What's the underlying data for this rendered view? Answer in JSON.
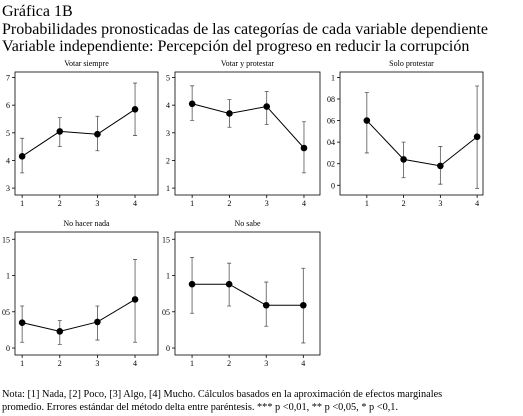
{
  "header": {
    "lines": [
      "Gráfica 1B",
      "Probabilidades pronosticadas de las categorías de cada variable dependiente",
      "Variable independiente: Percepción del progreso en reducir la corrupción"
    ]
  },
  "chart_data": [
    {
      "type": "line",
      "title": "Votar siempre",
      "color": "#000000",
      "x": [
        1,
        2,
        3,
        4
      ],
      "xlim": [
        0.81,
        4.61
      ],
      "xticks": [
        1,
        2,
        3,
        4
      ],
      "values": [
        4.15,
        5.05,
        4.95,
        5.85
      ],
      "ci_low": [
        3.55,
        4.5,
        4.35,
        4.9
      ],
      "ci_high": [
        4.8,
        5.55,
        5.6,
        6.8
      ],
      "ylim": [
        2.75,
        7.2
      ],
      "yticks": [
        3,
        4,
        5,
        6,
        7
      ]
    },
    {
      "type": "line",
      "title": "Votar y protestar",
      "color": "#000000",
      "x": [
        1,
        2,
        3,
        4
      ],
      "xlim": [
        0.54,
        4.43
      ],
      "xticks": [
        1,
        2,
        3,
        4
      ],
      "values": [
        4.05,
        3.7,
        3.95,
        2.45
      ],
      "ci_low": [
        3.45,
        3.2,
        3.3,
        1.55
      ],
      "ci_high": [
        4.7,
        4.2,
        4.5,
        3.4
      ],
      "ylim": [
        0.75,
        5.2
      ],
      "yticks": [
        1,
        2,
        3,
        4,
        5
      ]
    },
    {
      "type": "line",
      "title": "Solo protestar",
      "color": "#000000",
      "x": [
        1,
        2,
        3,
        4
      ],
      "xlim": [
        0.27,
        4.16
      ],
      "xticks": [
        1,
        2,
        3,
        4
      ],
      "values": [
        0.06,
        0.024,
        0.018,
        0.045
      ],
      "ci_low": [
        0.03,
        0.007,
        0.001,
        -0.003
      ],
      "ci_high": [
        0.086,
        0.04,
        0.036,
        0.092
      ],
      "ylim": [
        -0.009,
        0.105
      ],
      "yticks": [
        0,
        {
          "value": 0.02,
          "label": "02"
        },
        {
          "value": 0.04,
          "label": "04"
        },
        {
          "value": 0.06,
          "label": "06"
        },
        {
          "value": 0.08,
          "label": "08"
        },
        {
          "value": 0.1,
          "label": "1"
        }
      ]
    },
    {
      "type": "line",
      "title": "No hacer nada",
      "color": "#000000",
      "x": [
        1,
        2,
        3,
        4
      ],
      "xlim": [
        0.81,
        4.61
      ],
      "xticks": [
        1,
        2,
        3,
        4
      ],
      "values": [
        0.035,
        0.023,
        0.036,
        0.067
      ],
      "ci_low": [
        0.008,
        0.005,
        0.011,
        0.008
      ],
      "ci_high": [
        0.058,
        0.038,
        0.058,
        0.122
      ],
      "ylim": [
        -0.0096,
        0.16
      ],
      "yticks": [
        0,
        {
          "value": 0.05,
          "label": "05"
        },
        {
          "value": 0.1,
          "label": "1"
        },
        {
          "value": 0.15,
          "label": "15"
        }
      ]
    },
    {
      "type": "line",
      "title": "No sabe",
      "color": "#000000",
      "x": [
        1,
        2,
        3,
        4
      ],
      "xlim": [
        0.54,
        4.45
      ],
      "xticks": [
        1,
        2,
        3,
        4
      ],
      "values": [
        0.088,
        0.088,
        0.059,
        0.059
      ],
      "ci_low": [
        0.048,
        0.058,
        0.03,
        0.007
      ],
      "ci_high": [
        0.125,
        0.117,
        0.091,
        0.11
      ],
      "ylim": [
        -0.0096,
        0.16
      ],
      "yticks": [
        0,
        {
          "value": 0.05,
          "label": "05"
        },
        {
          "value": 0.1,
          "label": "1"
        },
        {
          "value": 0.15,
          "label": "15"
        }
      ]
    }
  ],
  "note": {
    "lines": [
      "Nota: [1] Nada, [2] Poco, [3] Algo, [4] Mucho. Cálculos basados en la aproximación de efectos marginales",
      "promedio. Errores estándar del método delta entre paréntesis. *** p <0,01, ** p <0,05, * p <0,1."
    ]
  }
}
